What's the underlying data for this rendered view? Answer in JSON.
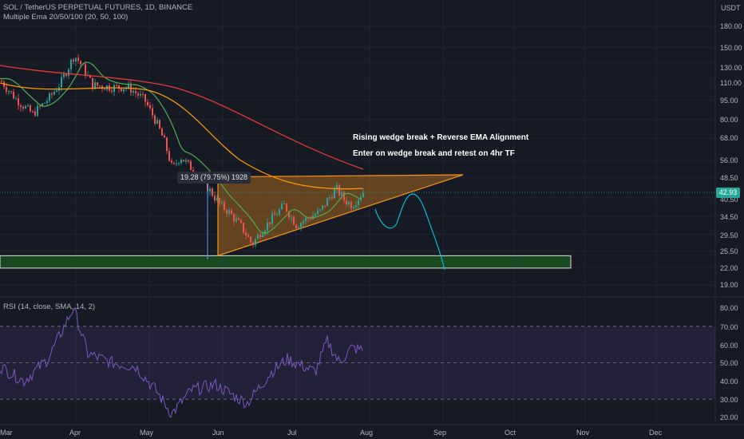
{
  "header": {
    "symbol_line": "SOL / TetherUS PERPETUAL FUTURES, 1D, BINANCE",
    "indicator_line": "Multiple Ema 20/50/100 (20, 50, 100)",
    "rsi_label": "RSI (14, close, SMA, 14, 2)"
  },
  "price_axis": {
    "unit": "USDT",
    "ticks": [
      "180.00",
      "150.00",
      "130.00",
      "110.00",
      "95.00",
      "80.00",
      "68.00",
      "56.00",
      "48.50",
      "40.50",
      "34.50",
      "29.50",
      "25.50",
      "22.00",
      "19.00"
    ],
    "last_price": "42.93"
  },
  "rsi_axis": {
    "ticks": [
      "80.00",
      "70.00",
      "60.00",
      "50.00",
      "40.00",
      "30.00",
      "20.00"
    ]
  },
  "time_axis": {
    "ticks": [
      "Mar",
      "Apr",
      "May",
      "Jun",
      "Jul",
      "Aug",
      "Sep",
      "Oct",
      "Nov",
      "Dec"
    ]
  },
  "annotations": {
    "line1": "Rising wedge break + Reverse EMA Alignment",
    "line2": "Enter on wedge break and retest on 4hr TF",
    "measure": "19.28 (79.75%) 1928"
  },
  "colors": {
    "background": "#161a25",
    "up": "#26a69a",
    "down": "#ef5350",
    "ema20": "#4caf50",
    "ema50": "#ff9800",
    "ema100": "#e53935",
    "wedge": "#f7931a",
    "support_zone": "#1b5e20",
    "projection": "#00bcd4",
    "rsi": "#7e57c2"
  },
  "chart_data": {
    "type": "candlestick",
    "pair": "SOL / TetherUS",
    "ema_periods": [
      20,
      50,
      100
    ],
    "y_scale": "log",
    "ylim": [
      18,
      190
    ],
    "rsi_ylim": [
      20,
      80
    ],
    "support_zone": [
      22,
      24.5
    ],
    "wedge": {
      "upper_start": 46,
      "upper_end": 49.5,
      "lower_start": 24.5,
      "apex": 49.5
    },
    "projection_end": 22
  }
}
